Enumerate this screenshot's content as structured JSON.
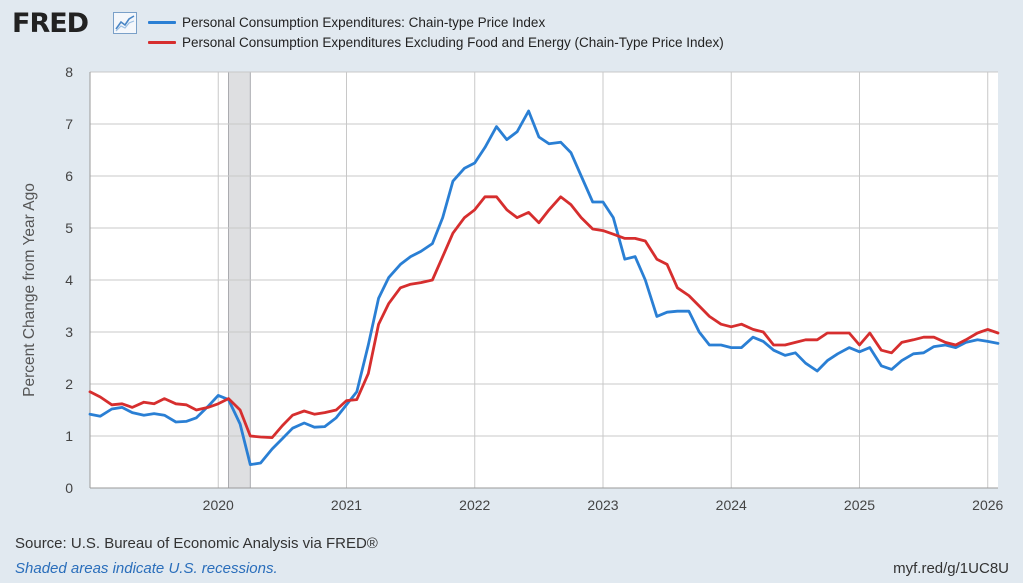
{
  "header": {
    "logo_text": "FRED",
    "logo_icon": "line-chart-icon"
  },
  "chart_data": {
    "type": "line",
    "xlabel": "",
    "ylabel": "Percent Change from Year Ago",
    "ylim": [
      0,
      8
    ],
    "yticks": [
      "0",
      "1",
      "2",
      "3",
      "4",
      "5",
      "6",
      "7",
      "8"
    ],
    "xlim": [
      2019.0,
      2026.08
    ],
    "xticks": [
      "2020",
      "2021",
      "2022",
      "2023",
      "2024",
      "2025",
      "2026"
    ],
    "grid": true,
    "legend_position": "top-left",
    "recessions": [
      [
        2020.08,
        2020.25
      ]
    ],
    "series": [
      {
        "name": "Personal Consumption Expenditures: Chain-type Price Index",
        "color": "#2a7fd4",
        "x": [
          2019.0,
          2019.08,
          2019.17,
          2019.25,
          2019.33,
          2019.42,
          2019.5,
          2019.58,
          2019.67,
          2019.75,
          2019.83,
          2019.92,
          2020.0,
          2020.08,
          2020.17,
          2020.25,
          2020.33,
          2020.42,
          2020.5,
          2020.58,
          2020.67,
          2020.75,
          2020.83,
          2020.92,
          2021.0,
          2021.08,
          2021.17,
          2021.25,
          2021.33,
          2021.42,
          2021.5,
          2021.58,
          2021.67,
          2021.75,
          2021.83,
          2021.92,
          2022.0,
          2022.08,
          2022.17,
          2022.25,
          2022.33,
          2022.42,
          2022.5,
          2022.58,
          2022.67,
          2022.75,
          2022.83,
          2022.92,
          2023.0,
          2023.08,
          2023.17,
          2023.25,
          2023.33,
          2023.42,
          2023.5,
          2023.58,
          2023.67,
          2023.75,
          2023.83,
          2023.92,
          2024.0,
          2024.08,
          2024.17,
          2024.25,
          2024.33,
          2024.42,
          2024.5,
          2024.58,
          2024.67,
          2024.75,
          2024.83,
          2024.92,
          2025.0,
          2025.08,
          2025.17,
          2025.25,
          2025.33,
          2025.42,
          2025.5,
          2025.58,
          2025.67,
          2025.75,
          2025.83,
          2025.92,
          2026.0,
          2026.08
        ],
        "values": [
          1.42,
          1.38,
          1.52,
          1.55,
          1.45,
          1.4,
          1.43,
          1.4,
          1.27,
          1.28,
          1.35,
          1.57,
          1.78,
          1.7,
          1.23,
          0.45,
          0.48,
          0.75,
          0.95,
          1.15,
          1.25,
          1.17,
          1.18,
          1.35,
          1.6,
          1.85,
          2.75,
          3.65,
          4.05,
          4.3,
          4.45,
          4.55,
          4.7,
          5.2,
          5.9,
          6.15,
          6.25,
          6.55,
          6.95,
          6.7,
          6.85,
          7.25,
          6.75,
          6.62,
          6.65,
          6.45,
          6.0,
          5.5,
          5.5,
          5.2,
          4.4,
          4.45,
          4.0,
          3.3,
          3.38,
          3.4,
          3.4,
          3.0,
          2.75,
          2.75,
          2.7,
          2.7,
          2.9,
          2.82,
          2.65,
          2.55,
          2.6,
          2.4,
          2.25,
          2.45,
          2.58,
          2.7,
          2.62,
          2.7,
          2.35,
          2.28,
          2.45,
          2.58,
          2.6,
          2.72,
          2.75,
          2.7,
          2.8,
          2.85,
          2.82,
          2.78
        ]
      },
      {
        "name": "Personal Consumption Expenditures Excluding Food and Energy (Chain-Type Price Index)",
        "color": "#d62e2e",
        "x": [
          2019.0,
          2019.08,
          2019.17,
          2019.25,
          2019.33,
          2019.42,
          2019.5,
          2019.58,
          2019.67,
          2019.75,
          2019.83,
          2019.92,
          2020.0,
          2020.08,
          2020.17,
          2020.25,
          2020.33,
          2020.42,
          2020.5,
          2020.58,
          2020.67,
          2020.75,
          2020.83,
          2020.92,
          2021.0,
          2021.08,
          2021.17,
          2021.25,
          2021.33,
          2021.42,
          2021.5,
          2021.58,
          2021.67,
          2021.75,
          2021.83,
          2021.92,
          2022.0,
          2022.08,
          2022.17,
          2022.25,
          2022.33,
          2022.42,
          2022.5,
          2022.58,
          2022.67,
          2022.75,
          2022.83,
          2022.92,
          2023.0,
          2023.08,
          2023.17,
          2023.25,
          2023.33,
          2023.42,
          2023.5,
          2023.58,
          2023.67,
          2023.75,
          2023.83,
          2023.92,
          2024.0,
          2024.08,
          2024.17,
          2024.25,
          2024.33,
          2024.42,
          2024.5,
          2024.58,
          2024.67,
          2024.75,
          2024.83,
          2024.92,
          2025.0,
          2025.08,
          2025.17,
          2025.25,
          2025.33,
          2025.42,
          2025.5,
          2025.58,
          2025.67,
          2025.75,
          2025.83,
          2025.92,
          2026.0,
          2026.08
        ],
        "values": [
          1.85,
          1.75,
          1.6,
          1.62,
          1.55,
          1.65,
          1.62,
          1.72,
          1.62,
          1.6,
          1.5,
          1.55,
          1.62,
          1.72,
          1.5,
          1.0,
          0.98,
          0.97,
          1.2,
          1.4,
          1.48,
          1.42,
          1.45,
          1.5,
          1.68,
          1.7,
          2.2,
          3.15,
          3.55,
          3.85,
          3.92,
          3.95,
          4.0,
          4.45,
          4.9,
          5.2,
          5.35,
          5.6,
          5.6,
          5.35,
          5.2,
          5.3,
          5.1,
          5.35,
          5.6,
          5.45,
          5.2,
          4.98,
          4.95,
          4.88,
          4.8,
          4.8,
          4.75,
          4.4,
          4.3,
          3.85,
          3.7,
          3.5,
          3.3,
          3.15,
          3.1,
          3.15,
          3.05,
          3.0,
          2.75,
          2.75,
          2.8,
          2.85,
          2.85,
          2.98,
          2.98,
          2.98,
          2.75,
          2.98,
          2.65,
          2.6,
          2.8,
          2.85,
          2.9,
          2.9,
          2.8,
          2.75,
          2.85,
          2.98,
          3.05,
          2.98
        ]
      }
    ]
  },
  "footer": {
    "source": "Source: U.S. Bureau of Economic Analysis via FRED®",
    "note": "Shaded areas indicate U.S. recessions.",
    "link": "myf.red/g/1UC8U"
  }
}
